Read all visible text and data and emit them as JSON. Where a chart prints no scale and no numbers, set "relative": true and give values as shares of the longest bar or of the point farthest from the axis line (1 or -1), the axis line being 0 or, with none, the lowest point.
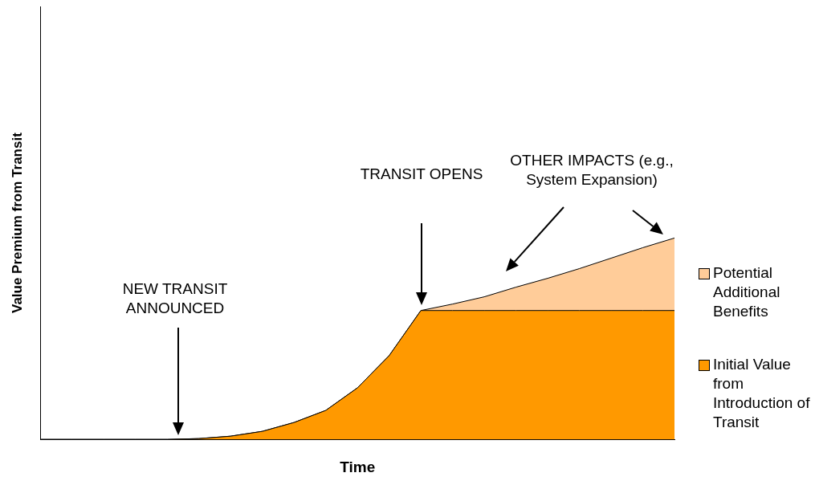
{
  "chart_data": {
    "type": "area",
    "relative": true,
    "stacked": true,
    "grid": false,
    "legend": "right",
    "marker": "none",
    "xlabel": "Time",
    "ylabel": "Value Premium from Transit",
    "categories": [
      null,
      null,
      null,
      null,
      null,
      null,
      null,
      null,
      null,
      null,
      null,
      null,
      null,
      null,
      null,
      null,
      null,
      null,
      null,
      null,
      null
    ],
    "series": [
      {
        "name": "Initial Value from Introduction of Transit",
        "color": "#ff9900",
        "values": [
          0,
          0,
          0,
          0,
          0,
          0.004,
          0.016,
          0.04,
          0.084,
          0.144,
          0.256,
          0.416,
          0.64,
          0.64,
          0.64,
          0.64,
          0.64,
          0.64,
          0.64,
          0.64,
          0.64
        ]
      },
      {
        "name": "Potential Additional Benefits",
        "color": "#ffcc99",
        "values": [
          0,
          0,
          0,
          0,
          0,
          0,
          0,
          0,
          0,
          0,
          0,
          0,
          0,
          0.032,
          0.068,
          0.116,
          0.16,
          0.208,
          0.26,
          0.312,
          0.36
        ]
      }
    ],
    "annotations": [
      "NEW TRANSIT ANNOUNCED",
      "TRANSIT OPENS",
      "OTHER IMPACTS (e.g., System Expansion)"
    ]
  }
}
